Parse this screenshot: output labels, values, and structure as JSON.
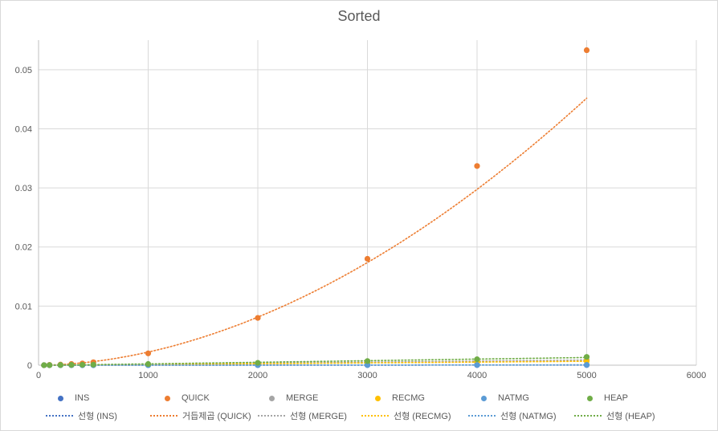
{
  "chart_data": {
    "type": "scatter",
    "title": "Sorted",
    "xlabel": "",
    "ylabel": "",
    "xlim": [
      0,
      6000
    ],
    "ylim": [
      0,
      0.055
    ],
    "xticks": [
      0,
      1000,
      2000,
      3000,
      4000,
      5000,
      6000
    ],
    "yticks": [
      0,
      0.01,
      0.02,
      0.03,
      0.04,
      0.05
    ],
    "grid": true,
    "legend_position": "bottom",
    "series": [
      {
        "name": "INS",
        "color": "#4472C4",
        "x": [
          50,
          100,
          200,
          300,
          400,
          500,
          1000,
          2000,
          3000,
          4000,
          5000
        ],
        "y": [
          0,
          0,
          0,
          0,
          0,
          0,
          1e-05,
          1e-05,
          2e-05,
          2e-05,
          3e-05
        ]
      },
      {
        "name": "QUICK",
        "color": "#ED7D31",
        "x": [
          50,
          100,
          200,
          300,
          400,
          500,
          1000,
          2000,
          3000,
          4000,
          5000
        ],
        "y": [
          0,
          5e-05,
          0.0001,
          0.0002,
          0.0003,
          0.0005,
          0.002,
          0.008,
          0.018,
          0.0337,
          0.0533
        ]
      },
      {
        "name": "MERGE",
        "color": "#A5A5A5",
        "x": [
          50,
          100,
          200,
          300,
          400,
          500,
          1000,
          2000,
          3000,
          4000,
          5000
        ],
        "y": [
          0,
          0,
          2e-05,
          3e-05,
          4e-05,
          5e-05,
          0.0001,
          0.0003,
          0.0005,
          0.0007,
          0.0009
        ]
      },
      {
        "name": "RECMG",
        "color": "#FFC000",
        "x": [
          50,
          100,
          200,
          300,
          400,
          500,
          1000,
          2000,
          3000,
          4000,
          5000
        ],
        "y": [
          0,
          0,
          2e-05,
          3e-05,
          4e-05,
          5e-05,
          0.0001,
          0.0002,
          0.0004,
          0.0005,
          0.0007
        ]
      },
      {
        "name": "NATMG",
        "color": "#5B9BD5",
        "x": [
          50,
          100,
          200,
          300,
          400,
          500,
          1000,
          2000,
          3000,
          4000,
          5000
        ],
        "y": [
          0,
          0,
          0,
          0,
          0,
          0,
          1e-05,
          2e-05,
          3e-05,
          4e-05,
          5e-05
        ]
      },
      {
        "name": "HEAP",
        "color": "#70AD47",
        "x": [
          50,
          100,
          200,
          300,
          400,
          500,
          1000,
          2000,
          3000,
          4000,
          5000
        ],
        "y": [
          0,
          1e-05,
          3e-05,
          5e-05,
          7e-05,
          9e-05,
          0.0002,
          0.0004,
          0.0007,
          0.001,
          0.0014
        ]
      }
    ],
    "trendlines": [
      {
        "name": "선형 (INS)",
        "of": "INS",
        "kind": "linear",
        "color": "#4472C4"
      },
      {
        "name": "거듭제곱 (QUICK)",
        "of": "QUICK",
        "kind": "power",
        "color": "#ED7D31"
      },
      {
        "name": "선형 (MERGE)",
        "of": "MERGE",
        "kind": "linear",
        "color": "#A5A5A5"
      },
      {
        "name": "선형 (RECMG)",
        "of": "RECMG",
        "kind": "linear",
        "color": "#FFC000"
      },
      {
        "name": "선형 (NATMG)",
        "of": "NATMG",
        "kind": "linear",
        "color": "#5B9BD5"
      },
      {
        "name": "선형 (HEAP)",
        "of": "HEAP",
        "kind": "linear",
        "color": "#70AD47"
      }
    ]
  }
}
